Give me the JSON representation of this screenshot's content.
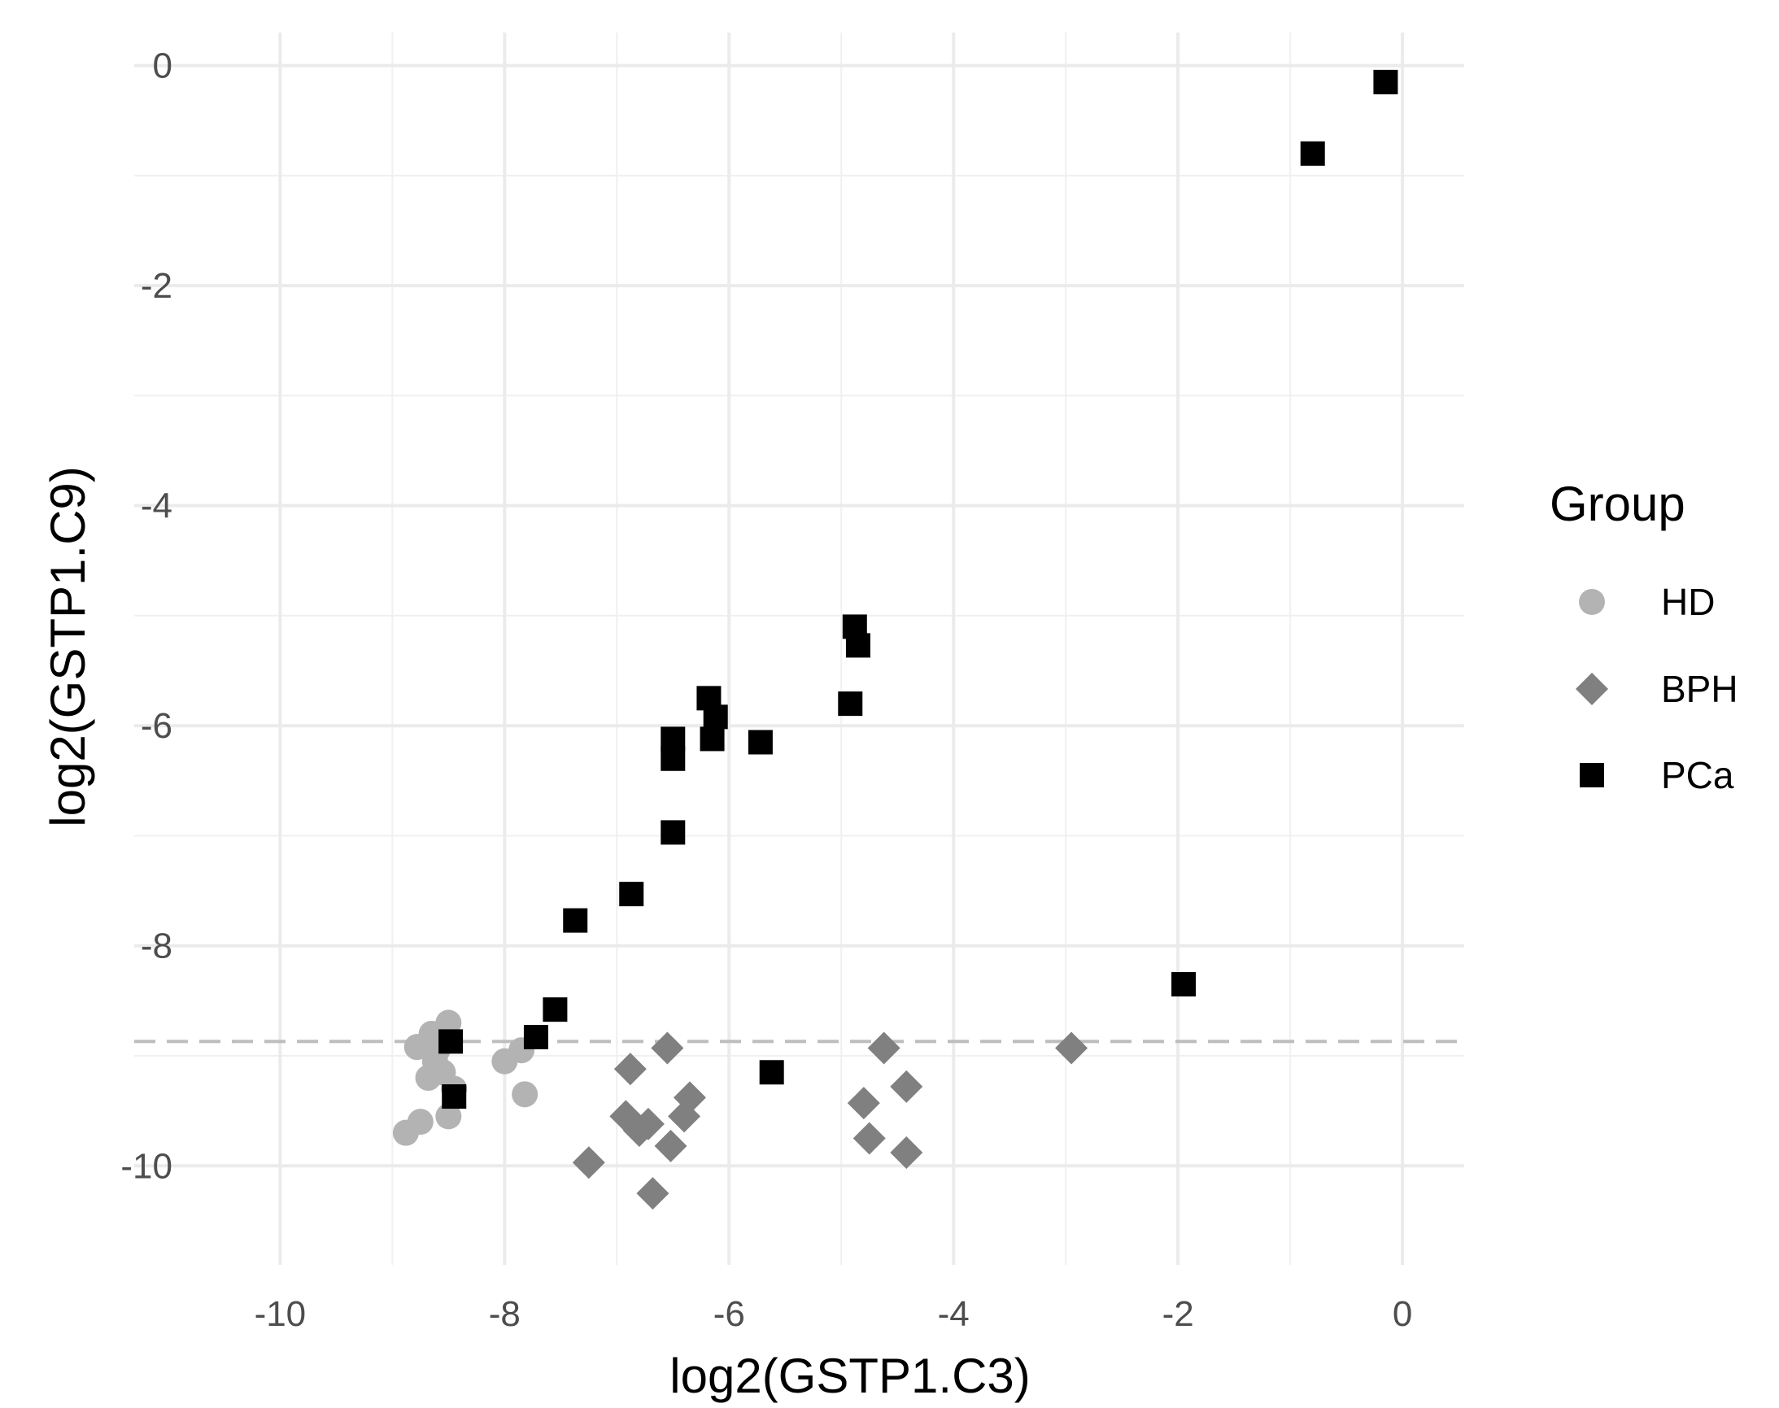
{
  "chart_data": {
    "type": "scatter",
    "title": "",
    "xlabel": "log2(GSTP1.C3)",
    "ylabel": "log2(GSTP1.C9)",
    "xlim": [
      -11.3,
      0.55
    ],
    "ylim": [
      -10.9,
      0.3
    ],
    "x_ticks": [
      -10,
      -8,
      -6,
      -4,
      -2,
      0
    ],
    "y_ticks": [
      0,
      -2,
      -4,
      -6,
      -8,
      -10
    ],
    "x_tick_labels": [
      "-10",
      "-8",
      "-6",
      "-4",
      "-2",
      "0"
    ],
    "y_tick_labels": [
      "0",
      "-2",
      "-4",
      "-6",
      "-8",
      "-10"
    ],
    "grid": true,
    "reference_line": {
      "orientation": "horizontal",
      "y": -8.87,
      "style": "dashed",
      "color": "#bdbdbd"
    },
    "legend": {
      "title": "Group",
      "position": "right",
      "entries": [
        "HD",
        "BPH",
        "PCa"
      ]
    },
    "series": [
      {
        "name": "HD",
        "shape": "circle",
        "color": "#b3b3b3",
        "points": [
          [
            -8.5,
            -8.7
          ],
          [
            -8.65,
            -8.8
          ],
          [
            -8.6,
            -8.95
          ],
          [
            -8.78,
            -8.92
          ],
          [
            -8.68,
            -9.2
          ],
          [
            -8.55,
            -9.15
          ],
          [
            -8.62,
            -9.05
          ],
          [
            -8.45,
            -9.3
          ],
          [
            -8.5,
            -9.55
          ],
          [
            -8.75,
            -9.6
          ],
          [
            -8.88,
            -9.7
          ],
          [
            -8.0,
            -9.05
          ],
          [
            -7.85,
            -8.95
          ],
          [
            -7.82,
            -9.35
          ]
        ]
      },
      {
        "name": "BPH",
        "shape": "diamond",
        "color": "#808080",
        "points": [
          [
            -6.55,
            -8.93
          ],
          [
            -6.88,
            -9.12
          ],
          [
            -6.35,
            -9.38
          ],
          [
            -6.4,
            -9.55
          ],
          [
            -6.92,
            -9.55
          ],
          [
            -6.8,
            -9.68
          ],
          [
            -6.72,
            -9.62
          ],
          [
            -6.52,
            -9.82
          ],
          [
            -7.25,
            -9.97
          ],
          [
            -6.68,
            -10.25
          ],
          [
            -4.62,
            -8.93
          ],
          [
            -4.8,
            -9.43
          ],
          [
            -4.42,
            -9.28
          ],
          [
            -4.75,
            -9.75
          ],
          [
            -4.42,
            -9.88
          ],
          [
            -2.95,
            -8.93
          ]
        ]
      },
      {
        "name": "PCa",
        "shape": "square",
        "color": "#000000",
        "points": [
          [
            -0.15,
            -0.15
          ],
          [
            -0.8,
            -0.8
          ],
          [
            -4.88,
            -5.1
          ],
          [
            -4.85,
            -5.27
          ],
          [
            -4.92,
            -5.8
          ],
          [
            -6.18,
            -5.75
          ],
          [
            -6.12,
            -5.92
          ],
          [
            -6.15,
            -6.12
          ],
          [
            -6.5,
            -6.12
          ],
          [
            -6.5,
            -6.3
          ],
          [
            -5.72,
            -6.15
          ],
          [
            -6.5,
            -6.97
          ],
          [
            -6.87,
            -7.53
          ],
          [
            -7.37,
            -7.77
          ],
          [
            -7.55,
            -8.58
          ],
          [
            -7.72,
            -8.83
          ],
          [
            -8.48,
            -8.87
          ],
          [
            -8.45,
            -9.37
          ],
          [
            -5.62,
            -9.15
          ],
          [
            -1.95,
            -8.35
          ]
        ]
      }
    ]
  }
}
